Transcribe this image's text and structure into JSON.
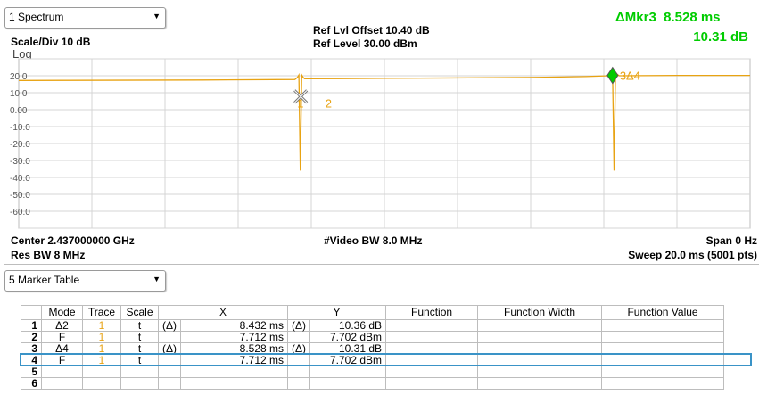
{
  "header": {
    "window_dropdown": "1 Spectrum",
    "scale_div": "Scale/Div 10 dB",
    "log_label": "Log",
    "ref_offset": "Ref Lvl Offset 10.40 dB",
    "ref_level": "Ref Level 30.00 dBm",
    "marker_readout_x": "ΔMkr3  8.528 ms",
    "marker_readout_y": "10.31 dB"
  },
  "footer": {
    "center": "Center 2.437000000 GHz",
    "res_bw": "Res BW 8 MHz",
    "video_bw": "#Video BW 8.0 MHz",
    "span": "Span 0 Hz",
    "sweep": "Sweep 20.0 ms (5001 pts)"
  },
  "colors": {
    "trace": "#e8a313",
    "active_marker": "#00cc00",
    "selection": "#3a93c7",
    "grid": "#d4d4d4"
  },
  "chart_data": {
    "type": "line",
    "yticks": [
      "20.0",
      "10.0",
      "0.00",
      "-10.0",
      "-20.0",
      "-30.0",
      "-40.0",
      "-50.0",
      "-60.0"
    ],
    "ylim": [
      -70,
      30
    ],
    "xlim_ms": [
      0,
      20
    ],
    "trace": {
      "x_ms": [
        0,
        5,
        7.55,
        7.62,
        7.66,
        7.7,
        7.74,
        7.78,
        7.82,
        10,
        14,
        15.5,
        16.14,
        16.2,
        16.24,
        16.28,
        16.32,
        16.36,
        16.42,
        18,
        20
      ],
      "y_db": [
        17.2,
        17.5,
        17.8,
        19.0,
        20.5,
        -36,
        20.5,
        19.0,
        18.2,
        18.5,
        19.0,
        19.5,
        20.0,
        21.0,
        22.0,
        -36,
        22.0,
        21.0,
        20.0,
        20.2,
        20.2
      ]
    },
    "markers": [
      {
        "label": "1",
        "x_ms": 7.712,
        "y_db": 7.702,
        "shape": "x"
      },
      {
        "label": "2",
        "x_ms": 8.432,
        "y_db": 7.702,
        "shape": "none"
      },
      {
        "label": "3Δ4",
        "x_ms": 16.24,
        "y_db": 20.2,
        "shape": "diamond",
        "active": true
      }
    ]
  },
  "marker_table": {
    "dropdown": "5 Marker Table",
    "headers": [
      "Mode",
      "Trace",
      "Scale",
      "X",
      "Y",
      "Function",
      "Function Width",
      "Function Value"
    ],
    "rows": [
      {
        "idx": "1",
        "mode": "Δ2",
        "trace": "1",
        "scale": "t",
        "xd": "(Δ)",
        "x": "8.432 ms",
        "yd": "(Δ)",
        "y": "10.36 dB",
        "fn": "",
        "fw": "",
        "fv": ""
      },
      {
        "idx": "2",
        "mode": "F",
        "trace": "1",
        "scale": "t",
        "xd": "",
        "x": "7.712 ms",
        "yd": "",
        "y": "7.702 dBm",
        "fn": "",
        "fw": "",
        "fv": ""
      },
      {
        "idx": "3",
        "mode": "Δ4",
        "trace": "1",
        "scale": "t",
        "xd": "(Δ)",
        "x": "8.528 ms",
        "yd": "(Δ)",
        "y": "10.31 dB",
        "fn": "",
        "fw": "",
        "fv": ""
      },
      {
        "idx": "4",
        "mode": "F",
        "trace": "1",
        "scale": "t",
        "xd": "",
        "x": "7.712 ms",
        "yd": "",
        "y": "7.702 dBm",
        "fn": "",
        "fw": "",
        "fv": ""
      },
      {
        "idx": "5",
        "mode": "",
        "trace": "",
        "scale": "",
        "xd": "",
        "x": "",
        "yd": "",
        "y": "",
        "fn": "",
        "fw": "",
        "fv": ""
      },
      {
        "idx": "6",
        "mode": "",
        "trace": "",
        "scale": "",
        "xd": "",
        "x": "",
        "yd": "",
        "y": "",
        "fn": "",
        "fw": "",
        "fv": ""
      }
    ]
  }
}
